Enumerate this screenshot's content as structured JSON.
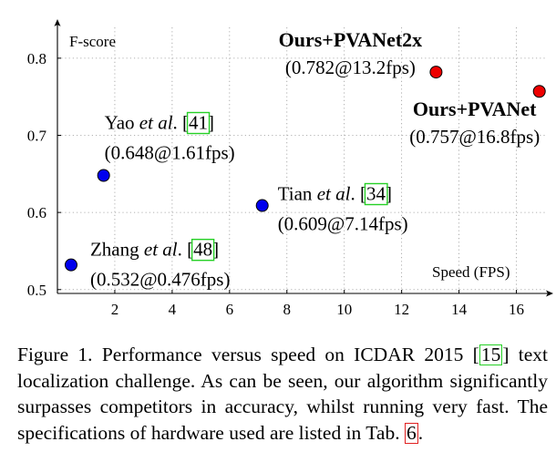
{
  "chart_data": {
    "type": "scatter",
    "xlabel": "Speed (FPS)",
    "ylabel": "F-score",
    "xlim": [
      0,
      17
    ],
    "ylim": [
      0.495,
      0.84
    ],
    "xticks": [
      "2",
      "4",
      "6",
      "8",
      "10",
      "12",
      "14",
      "16"
    ],
    "yticks": [
      "0.5",
      "0.6",
      "0.7",
      "0.8"
    ],
    "grid": true,
    "points": [
      {
        "name_pre": "Zhang ",
        "name_it": "et al",
        "name_post": ". ",
        "ref": "48",
        "value_label": "(0.532@0.476fps)",
        "x": 0.476,
        "y": 0.532,
        "color": "#0000ee"
      },
      {
        "name_pre": "Yao ",
        "name_it": "et al",
        "name_post": ". ",
        "ref": "41",
        "value_label": "(0.648@1.61fps)",
        "x": 1.61,
        "y": 0.648,
        "color": "#0000ee"
      },
      {
        "name_pre": "Tian ",
        "name_it": "et al",
        "name_post": ". ",
        "ref": "34",
        "value_label": "(0.609@7.14fps)",
        "x": 7.14,
        "y": 0.609,
        "color": "#0000ee"
      },
      {
        "name_bold": "Ours+PVANet2x",
        "value_label": "(0.782@13.2fps)",
        "x": 13.2,
        "y": 0.782,
        "color": "#ee0000"
      },
      {
        "name_bold": "Ours+PVANet",
        "value_label": "(0.757@16.8fps)",
        "x": 16.8,
        "y": 0.757,
        "color": "#ee0000"
      }
    ]
  },
  "caption": {
    "figure_label": "Figure 1.",
    "text_1": " Performance versus speed on ICDAR 2015 [",
    "ref_1": "15",
    "text_2": "] text localization challenge.  As can be seen, our algorithm significantly surpasses competitors in accuracy, whilst running very fast.  The specifications of hardware used are listed in Tab. ",
    "ref_2": "6",
    "text_3": "."
  }
}
